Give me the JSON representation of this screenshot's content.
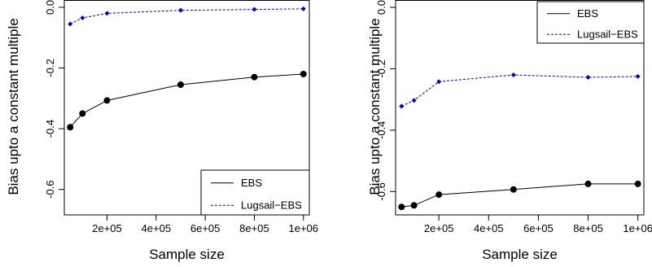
{
  "colors": {
    "ebs": "#000000",
    "lugsail": "#0000cd"
  },
  "chart_data": [
    {
      "type": "line",
      "xlabel": "Sample size",
      "ylabel": "Bias upto a constant multiple",
      "x": [
        50000,
        100000,
        200000,
        500000,
        800000,
        1000000
      ],
      "x_ticks": [
        200000,
        400000,
        600000,
        800000,
        1000000
      ],
      "x_tick_labels": [
        "2e+05",
        "4e+05",
        "6e+05",
        "8e+05",
        "1e+06"
      ],
      "y_ticks": [
        0.0,
        -0.2,
        -0.4,
        -0.6
      ],
      "y_tick_labels": [
        "0.0",
        "-0.2",
        "-0.4",
        "-0.6"
      ],
      "xlim": [
        26000,
        1024000
      ],
      "ylim": [
        -0.684,
        0.024
      ],
      "legend": "bottom-right",
      "series": [
        {
          "name": "EBS",
          "style": "solid",
          "marker": "circle",
          "color": "#000000",
          "values": [
            -0.395,
            -0.35,
            -0.307,
            -0.255,
            -0.23,
            -0.22
          ]
        },
        {
          "name": "Lugsail−EBS",
          "style": "dashed",
          "marker": "diamond",
          "color": "#0000cd",
          "values": [
            -0.055,
            -0.035,
            -0.02,
            -0.01,
            -0.007,
            -0.005
          ]
        }
      ]
    },
    {
      "type": "line",
      "xlabel": "Sample size",
      "ylabel": "Bias upto a constant multiple",
      "x": [
        50000,
        100000,
        200000,
        500000,
        800000,
        1000000
      ],
      "x_ticks": [
        200000,
        400000,
        600000,
        800000,
        1000000
      ],
      "x_tick_labels": [
        "2e+05",
        "4e+05",
        "6e+05",
        "8e+05",
        "1e+06"
      ],
      "y_ticks": [
        0.0,
        -0.2,
        -0.4,
        -0.6
      ],
      "y_tick_labels": [
        "0.0",
        "-0.2",
        "-0.4",
        "-0.6"
      ],
      "xlim": [
        26000,
        1024000
      ],
      "ylim": [
        -0.676,
        0.024
      ],
      "legend": "top-right",
      "series": [
        {
          "name": "EBS",
          "style": "solid",
          "marker": "circle",
          "color": "#000000",
          "values": [
            -0.65,
            -0.645,
            -0.61,
            -0.593,
            -0.575,
            -0.575
          ]
        },
        {
          "name": "Lugsail−EBS",
          "style": "dashed",
          "marker": "diamond",
          "color": "#0000cd",
          "values": [
            -0.322,
            -0.303,
            -0.242,
            -0.22,
            -0.228,
            -0.225
          ]
        }
      ]
    }
  ]
}
